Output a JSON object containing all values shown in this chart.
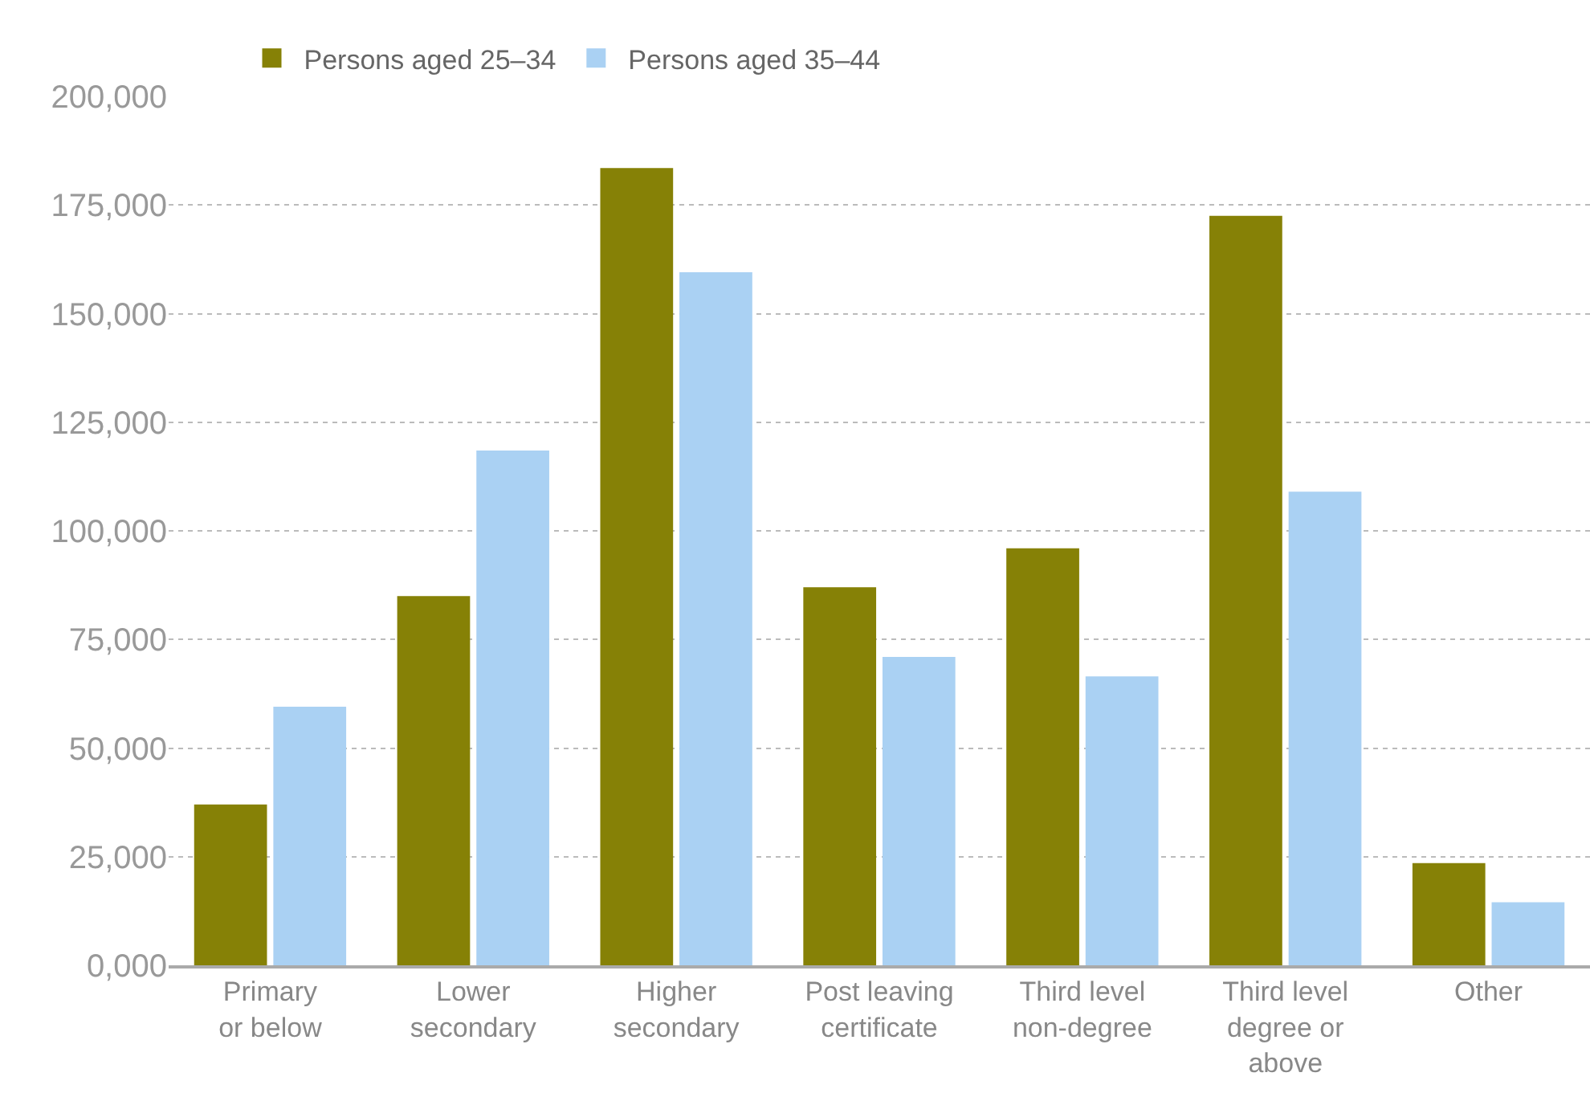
{
  "chart_data": {
    "type": "bar",
    "categories": [
      "Primary\nor below",
      "Lower\nsecondary",
      "Higher\nsecondary",
      "Post leaving\ncertificate",
      "Third level\nnon-degree",
      "Third level\ndegree or\nabove",
      "Other"
    ],
    "series": [
      {
        "name": "Persons aged 25–34",
        "color": "#868106",
        "values": [
          37000,
          85000,
          183500,
          87000,
          96000,
          172500,
          23500
        ]
      },
      {
        "name": "Persons aged 35–44",
        "color": "#aad1f3",
        "values": [
          59500,
          118500,
          159500,
          71000,
          66500,
          109000,
          14500
        ]
      }
    ],
    "ylim": [
      0,
      200000
    ],
    "yticks": [
      {
        "value": 0,
        "label": "0,000"
      },
      {
        "value": 25000,
        "label": "25,000"
      },
      {
        "value": 50000,
        "label": "50,000"
      },
      {
        "value": 75000,
        "label": "75,000"
      },
      {
        "value": 100000,
        "label": "100,000"
      },
      {
        "value": 125000,
        "label": "125,000"
      },
      {
        "value": 150000,
        "label": "150,000"
      },
      {
        "value": 175000,
        "label": "175,000"
      },
      {
        "value": 200000,
        "label": "200,000"
      }
    ],
    "grid": "y",
    "legend": "top left"
  }
}
